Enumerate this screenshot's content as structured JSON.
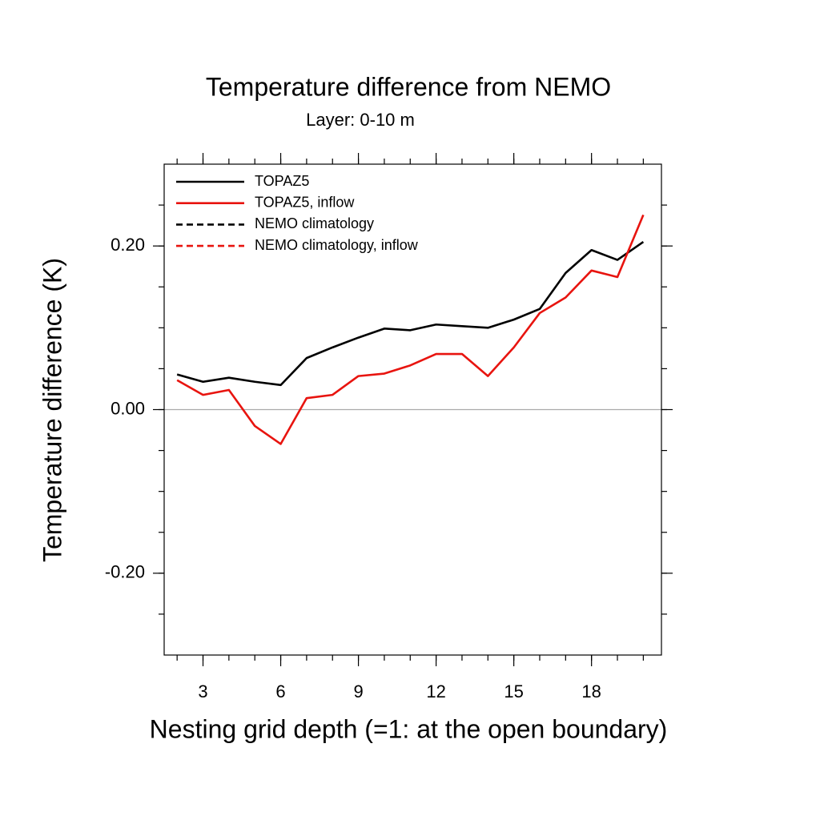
{
  "chart_data": {
    "type": "line",
    "title": "Temperature difference from NEMO",
    "subtitle": "Layer: 0-10 m",
    "x_label": "Nesting grid depth (=1: at the open boundary)",
    "y_label": "Temperature difference (K)",
    "x": [
      2,
      3,
      4,
      5,
      6,
      7,
      8,
      9,
      10,
      11,
      12,
      13,
      14,
      15,
      16,
      17,
      18,
      19,
      20
    ],
    "series": [
      {
        "name": "TOPAZ5",
        "color": "#000000",
        "dash": false,
        "values": [
          0.043,
          0.034,
          0.039,
          0.034,
          0.03,
          0.063,
          0.076,
          0.088,
          0.099,
          0.097,
          0.104,
          0.102,
          0.1,
          0.11,
          0.123,
          0.167,
          0.195,
          0.183,
          0.205
        ]
      },
      {
        "name": "TOPAZ5, inflow",
        "color": "#e8140f",
        "dash": false,
        "values": [
          0.036,
          0.018,
          0.024,
          -0.02,
          -0.042,
          0.014,
          0.018,
          0.041,
          0.044,
          0.054,
          0.068,
          0.068,
          0.041,
          0.076,
          0.118,
          0.137,
          0.17,
          0.162,
          0.238
        ]
      },
      {
        "name": "NEMO climatology",
        "color": "#000000",
        "dash": true,
        "values": [
          null,
          null,
          null,
          null,
          null,
          null,
          null,
          null,
          null,
          null,
          null,
          null,
          null,
          null,
          null,
          null,
          null,
          null,
          null
        ]
      },
      {
        "name": "NEMO climatology, inflow",
        "color": "#e8140f",
        "dash": true,
        "values": [
          null,
          null,
          null,
          null,
          null,
          null,
          null,
          null,
          null,
          null,
          null,
          null,
          null,
          null,
          null,
          null,
          null,
          null,
          null
        ]
      }
    ],
    "xlim": [
      1.5,
      20.7
    ],
    "ylim": [
      -0.3,
      0.3
    ],
    "xticks": [
      3,
      6,
      9,
      12,
      15,
      18
    ],
    "yticks": [
      {
        "value": -0.2,
        "label": "-0.20"
      },
      {
        "value": 0,
        "label": "0.00"
      },
      {
        "value": 0.2,
        "label": "0.20"
      }
    ],
    "xminorticks": [
      2,
      3,
      4,
      5,
      6,
      7,
      8,
      9,
      10,
      11,
      12,
      13,
      14,
      15,
      16,
      17,
      18,
      19,
      20
    ],
    "yminorticks": [
      -0.25,
      -0.2,
      -0.15,
      -0.1,
      -0.05,
      0,
      0.05,
      0.1,
      0.15,
      0.2,
      0.25
    ],
    "zero_line": true,
    "legend": "top-left"
  }
}
